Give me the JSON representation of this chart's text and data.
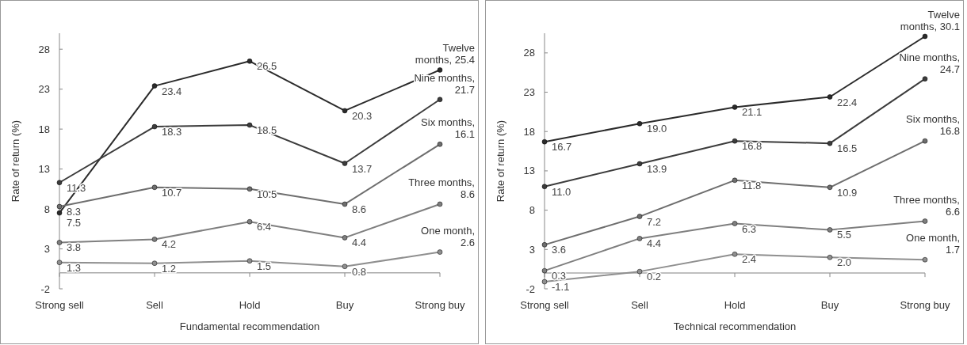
{
  "chart_data": [
    {
      "type": "line",
      "xlabel": "Fundamental recommendation",
      "ylabel": "Rate of return (%)",
      "categories": [
        "Strong sell",
        "Sell",
        "Hold",
        "Buy",
        "Strong buy"
      ],
      "ylim": [
        -2,
        30
      ],
      "yticks": [
        -2,
        3,
        8,
        13,
        18,
        23,
        28
      ],
      "marker": "circle",
      "legend": false,
      "grid": false,
      "series": [
        {
          "color": "#2b2b2b",
          "values": [
            7.5,
            23.4,
            26.5,
            20.3,
            25.4
          ],
          "value_labels": [
            "7.5",
            "23.4",
            "26.5",
            "20.3",
            null
          ]
        },
        {
          "color": "#3c3c3c",
          "values": [
            11.3,
            18.3,
            18.5,
            13.7,
            21.7
          ],
          "value_labels": [
            "11.3",
            "18.3",
            "18.5",
            "13.7",
            null
          ]
        },
        {
          "color": "#6e6e6e",
          "values": [
            8.3,
            10.7,
            10.5,
            8.6,
            16.1
          ],
          "value_labels": [
            "8.3",
            "10.7",
            "10.5",
            "8.6",
            null
          ]
        },
        {
          "color": "#7f7f7f",
          "values": [
            3.8,
            4.2,
            6.4,
            4.4,
            8.6
          ],
          "value_labels": [
            "3.8",
            "4.2",
            "6.4",
            "4.4",
            null
          ]
        },
        {
          "color": "#8f8f8f",
          "values": [
            1.3,
            1.2,
            1.5,
            0.8,
            2.6
          ],
          "value_labels": [
            "1.3",
            "1.2",
            "1.5",
            "0.8",
            null
          ]
        }
      ],
      "annotations": [
        {
          "text": "Twelve months, 25.4",
          "x": "Strong buy",
          "y": 25.4
        },
        {
          "text": "Nine months, 21.7",
          "x": "Strong buy",
          "y": 21.7
        },
        {
          "text": "Six months, 16.1",
          "x": "Strong buy",
          "y": 16.1
        },
        {
          "text": "Three months, 8.6",
          "x": "Strong buy",
          "y": 8.6
        },
        {
          "text": "One month, 2.6",
          "x": "Strong buy",
          "y": 2.6
        }
      ]
    },
    {
      "type": "line",
      "xlabel": "Technical recommendation",
      "ylabel": "Rate of return (%)",
      "categories": [
        "Strong sell",
        "Sell",
        "Hold",
        "Buy",
        "Strong buy"
      ],
      "ylim": [
        -2,
        30.5
      ],
      "yticks": [
        -2,
        3,
        8,
        13,
        18,
        23,
        28
      ],
      "marker": "circle",
      "legend": false,
      "grid": false,
      "series": [
        {
          "color": "#2b2b2b",
          "values": [
            16.7,
            19.0,
            21.1,
            22.4,
            30.1
          ],
          "value_labels": [
            "16.7",
            "19.0",
            "21.1",
            "22.4",
            null
          ]
        },
        {
          "color": "#3c3c3c",
          "values": [
            11.0,
            13.9,
            16.8,
            16.5,
            24.7
          ],
          "value_labels": [
            "11.0",
            "13.9",
            "16.8",
            "16.5",
            null
          ]
        },
        {
          "color": "#6e6e6e",
          "values": [
            3.6,
            7.2,
            11.8,
            10.9,
            16.8
          ],
          "value_labels": [
            "3.6",
            "7.2",
            "11.8",
            "10.9",
            null
          ]
        },
        {
          "color": "#7f7f7f",
          "values": [
            0.3,
            4.4,
            6.3,
            5.5,
            6.6
          ],
          "value_labels": [
            "0.3",
            "4.4",
            "6.3",
            "5.5",
            null
          ]
        },
        {
          "color": "#8f8f8f",
          "values": [
            -1.1,
            0.2,
            2.4,
            2.0,
            1.7
          ],
          "value_labels": [
            "-1.1",
            "0.2",
            "2.4",
            "2.0",
            null
          ]
        }
      ],
      "annotations": [
        {
          "text": "Twelve months, 30.1",
          "x": "Strong buy",
          "y": 30.1
        },
        {
          "text": "Nine months, 24.7",
          "x": "Strong buy",
          "y": 24.7
        },
        {
          "text": "Six months, 16.8",
          "x": "Strong buy",
          "y": 16.8
        },
        {
          "text": "Three months, 6.6",
          "x": "Strong buy",
          "y": 6.6
        },
        {
          "text": "One month, 1.7",
          "x": "Strong buy",
          "y": 1.7
        }
      ]
    }
  ]
}
